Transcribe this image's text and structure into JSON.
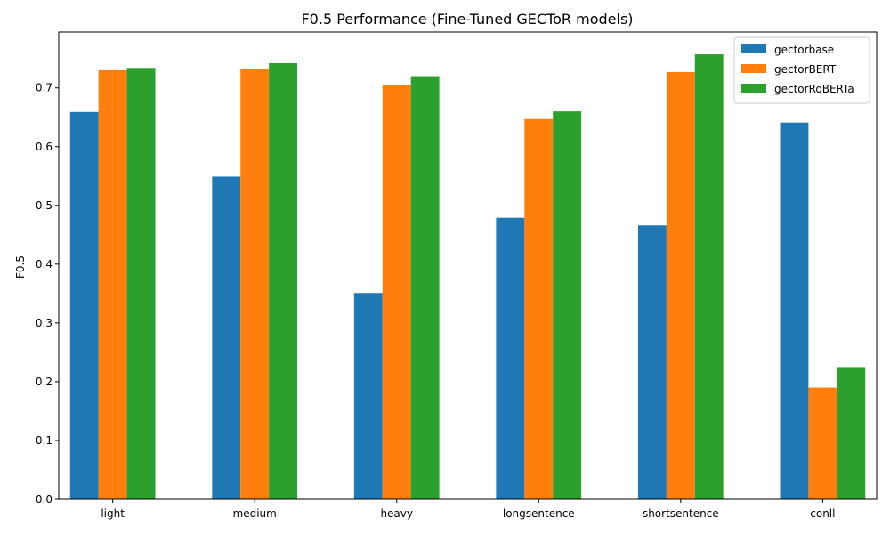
{
  "chart_data": {
    "type": "bar",
    "title": "F0.5 Performance (Fine-Tuned GECToR models)",
    "xlabel": "",
    "ylabel": "F0.5",
    "categories": [
      "light",
      "medium",
      "heavy",
      "longsentence",
      "shortsentence",
      "conll"
    ],
    "series": [
      {
        "name": "gectorbase",
        "color": "#1f77b4",
        "values": [
          0.659,
          0.549,
          0.351,
          0.479,
          0.466,
          0.641
        ]
      },
      {
        "name": "gectorBERT",
        "color": "#ff7f0e",
        "values": [
          0.73,
          0.733,
          0.705,
          0.647,
          0.727,
          0.19
        ]
      },
      {
        "name": "gectorRoBERTa",
        "color": "#2ca02c",
        "values": [
          0.734,
          0.742,
          0.72,
          0.66,
          0.757,
          0.225
        ]
      }
    ],
    "ylim": [
      0,
      0.795
    ],
    "yticks": [
      "0.0",
      "0.1",
      "0.2",
      "0.3",
      "0.4",
      "0.5",
      "0.6",
      "0.7"
    ],
    "legend": "top-right",
    "grid": false
  }
}
